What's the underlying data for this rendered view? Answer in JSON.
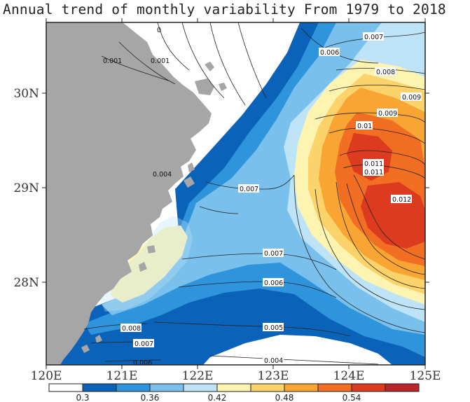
{
  "title": "Annual trend of monthly variability From 1979 to 2018",
  "map": {
    "lon_ticks": [
      "120E",
      "121E",
      "122E",
      "123E",
      "124E",
      "125E"
    ],
    "lat_ticks": [
      "30N",
      "29N",
      "28N"
    ],
    "land_color": "#a6a6a6",
    "ocean_background": "#ffffff"
  },
  "colorbar": {
    "colors": [
      "#ffffff",
      "#0a63b9",
      "#2e94dc",
      "#79c0ec",
      "#bfe3f6",
      "#fdf4b2",
      "#fbd36a",
      "#f8a534",
      "#f16e22",
      "#dc3b20",
      "#b8262a"
    ],
    "tick_labels": [
      "0.3",
      "0.36",
      "0.42",
      "0.48",
      "0.54"
    ]
  },
  "contour_labels": [
    "0",
    "0.001",
    "0.001",
    "0.007",
    "0.006",
    "0.008",
    "0.009",
    "0.009",
    "0.01",
    "0.011",
    "0.011",
    "0.012",
    "0.007",
    "0.007",
    "0.006",
    "0.005",
    "0.004",
    "0.008",
    "0.007",
    "0.006",
    "0.004"
  ]
}
